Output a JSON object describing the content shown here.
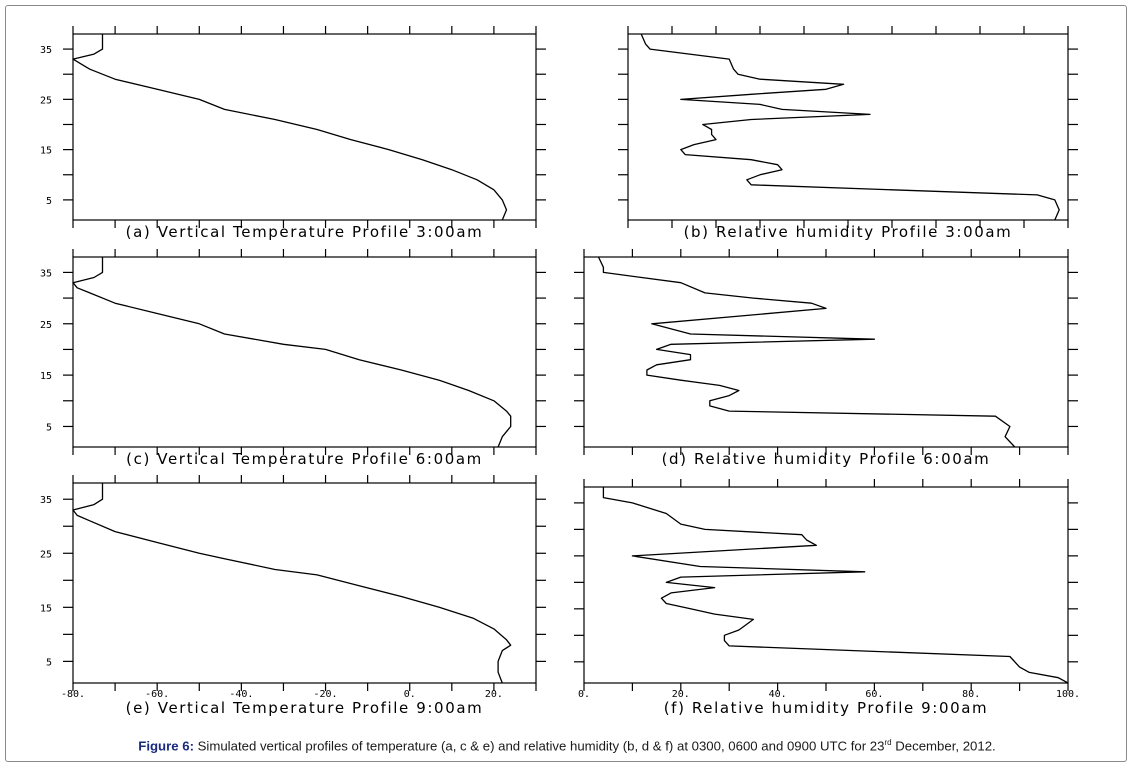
{
  "caption": {
    "label": "Figure 6:",
    "text_before": " Simulated vertical profiles of temperature (a, c & e) and relative humidity (b, d & f) at 0300, 0600 and 0900 UTC for 23",
    "sup": "rd",
    "text_after": " December, 2012."
  },
  "chart_data": [
    {
      "type": "line",
      "panel": "a",
      "title": "(a) Vertical Temperature Profile 3:00am",
      "xlim": [
        -80,
        30
      ],
      "ylim": [
        1,
        38
      ],
      "y_ticks": [
        "35",
        "25",
        "15",
        "5"
      ],
      "x_tick_labels": [],
      "series": [
        {
          "x": [
            22,
            23,
            22,
            20,
            16,
            10,
            3,
            -5,
            -14,
            -22,
            -32,
            -44,
            -50,
            -60,
            -70,
            -76,
            -78,
            -80,
            -75,
            -73,
            -73
          ],
          "y": [
            1,
            3,
            5,
            7,
            9,
            11,
            13,
            15,
            17,
            19,
            21,
            23,
            25,
            27,
            29,
            31,
            32,
            33,
            34,
            35,
            38
          ]
        }
      ]
    },
    {
      "type": "line",
      "panel": "b",
      "title": "(b) Relative humidity Profile 3:00am",
      "xlim": [
        0,
        100
      ],
      "ylim": [
        1,
        38
      ],
      "y_ticks": [],
      "x_tick_labels": [],
      "series": [
        {
          "x": [
            97,
            98,
            97,
            93,
            60,
            28,
            27,
            30,
            35,
            34,
            28,
            13,
            12,
            15,
            20,
            19,
            19,
            17,
            28,
            55,
            35,
            30,
            12,
            28,
            45,
            49,
            30,
            25,
            24,
            23,
            5,
            4,
            3
          ],
          "y": [
            1,
            3,
            5,
            6,
            7,
            8,
            9,
            10,
            11,
            12,
            13,
            14,
            15,
            16,
            17,
            18,
            19,
            20,
            21,
            22,
            23,
            24,
            25,
            26,
            27,
            28,
            29,
            30,
            31,
            33,
            35,
            36,
            38
          ]
        }
      ]
    },
    {
      "type": "line",
      "panel": "c",
      "title": "(c) Vertical Temperature Profile 6:00am",
      "xlim": [
        -80,
        30
      ],
      "ylim": [
        1,
        38
      ],
      "y_ticks": [
        "35",
        "25",
        "15",
        "5"
      ],
      "x_tick_labels": [],
      "series": [
        {
          "x": [
            21,
            22,
            24,
            24,
            23,
            20,
            14,
            7,
            -2,
            -12,
            -20,
            -30,
            -44,
            -50,
            -60,
            -70,
            -76,
            -79,
            -80,
            -75,
            -73,
            -73
          ],
          "y": [
            1,
            3,
            5,
            7,
            8,
            10,
            12,
            14,
            16,
            18,
            20,
            21,
            23,
            25,
            27,
            29,
            31,
            32,
            33,
            34,
            35,
            38
          ]
        }
      ]
    },
    {
      "type": "line",
      "panel": "d",
      "title": "(d) Relative humidity Profile 6:00am",
      "xlim": [
        0,
        100
      ],
      "ylim": [
        1,
        38
      ],
      "y_ticks": [],
      "x_tick_labels": [],
      "series": [
        {
          "x": [
            89,
            87,
            88,
            85,
            30,
            26,
            26,
            30,
            32,
            28,
            20,
            13,
            13,
            15,
            22,
            22,
            15,
            18,
            60,
            22,
            14,
            50,
            47,
            35,
            25,
            20,
            4,
            4,
            3
          ],
          "y": [
            1,
            3,
            5,
            7,
            8,
            9,
            10,
            11,
            12,
            13,
            14,
            15,
            16,
            17,
            18,
            19,
            20,
            21,
            22,
            23,
            25,
            28,
            29,
            30,
            31,
            33,
            35,
            36,
            38
          ]
        }
      ]
    },
    {
      "type": "line",
      "panel": "e",
      "title": "(e) Vertical Temperature Profile 9:00am",
      "xlim": [
        -80,
        30
      ],
      "ylim": [
        1,
        38
      ],
      "y_ticks": [
        "35",
        "25",
        "15",
        "5"
      ],
      "x_tick_labels": [
        "-80.",
        "-60.",
        "-40.",
        "-20.",
        "0.",
        "20."
      ],
      "series": [
        {
          "x": [
            22,
            21,
            21,
            22,
            24,
            23,
            20,
            15,
            7,
            -2,
            -12,
            -22,
            -32,
            -44,
            -50,
            -60,
            -70,
            -76,
            -79,
            -80,
            -75,
            -73,
            -73
          ],
          "y": [
            1,
            3,
            5,
            7,
            8,
            9,
            11,
            13,
            15,
            17,
            19,
            21,
            22,
            24,
            25,
            27,
            29,
            31,
            32,
            33,
            34,
            35,
            38
          ]
        }
      ]
    },
    {
      "type": "line",
      "panel": "f",
      "title": "(f) Relative humidity Profile 9:00am",
      "xlim": [
        0,
        100
      ],
      "ylim": [
        1,
        38
      ],
      "y_ticks": [],
      "x_tick_labels": [
        "0.",
        "20.",
        "40.",
        "60.",
        "80.",
        "100."
      ],
      "series": [
        {
          "x": [
            100,
            98,
            92,
            90,
            88,
            30,
            29,
            29,
            32,
            35,
            27,
            22,
            17,
            16,
            18,
            27,
            17,
            20,
            58,
            24,
            10,
            48,
            46,
            45,
            25,
            20,
            17,
            10,
            4,
            4
          ],
          "y": [
            1,
            2,
            3,
            4,
            6,
            8,
            9,
            10,
            11,
            13,
            14,
            15,
            16,
            17,
            18,
            19,
            20,
            21,
            22,
            23,
            25,
            27,
            28,
            29,
            30,
            31,
            33,
            35,
            36,
            38
          ]
        }
      ]
    }
  ]
}
